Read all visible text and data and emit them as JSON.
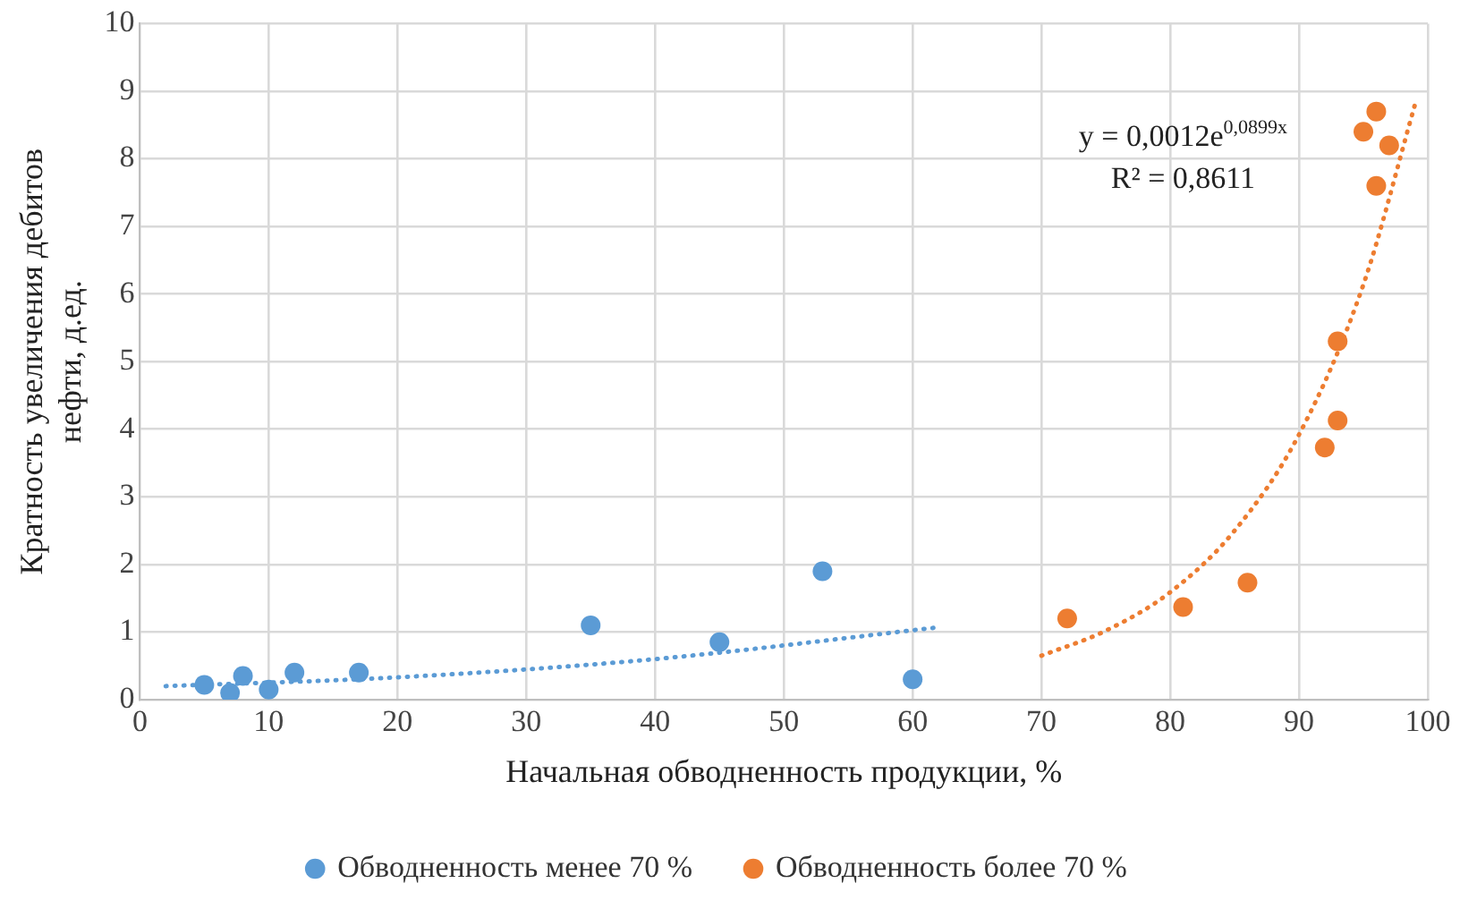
{
  "chart_data": {
    "type": "scatter",
    "xlabel": "Начальная обводненность продукции, %",
    "ylabel": "Кратность увеличения дебитов нефти, д.ед.",
    "xlim": [
      0,
      100
    ],
    "xticks": [
      0,
      10,
      20,
      30,
      40,
      50,
      60,
      70,
      80,
      90,
      100
    ],
    "ylim": [
      0,
      10
    ],
    "yticks": [
      0,
      1,
      2,
      3,
      4,
      5,
      6,
      7,
      8,
      9,
      10
    ],
    "grid": true,
    "legend": "bottom",
    "marker": "circle",
    "series": [
      {
        "name": "Обводненность менее 70 %",
        "color": "#5b9bd5",
        "x": [
          5,
          7,
          8,
          10,
          12,
          17,
          35,
          45,
          53,
          60
        ],
        "values": [
          0.22,
          0.1,
          0.35,
          0.15,
          0.4,
          0.4,
          1.1,
          0.85,
          1.9,
          0.3
        ]
      },
      {
        "name": "Обводненность более 70 %",
        "color": "#ed7d31",
        "x": [
          72,
          81,
          86,
          92,
          93,
          93,
          95,
          96,
          96,
          97
        ],
        "values": [
          1.2,
          1.37,
          1.73,
          3.73,
          4.13,
          5.3,
          8.4,
          8.7,
          7.6,
          8.2
        ]
      },
      {
        "type": "line",
        "color": "#5b9bd5",
        "line_style": "dotted",
        "marker": "none",
        "x": [
          2,
          20,
          40,
          62
        ],
        "values": [
          0.2,
          0.33,
          0.6,
          1.07
        ]
      },
      {
        "type": "line",
        "color": "#ed7d31",
        "line_style": "dotted",
        "marker": "none",
        "x": [
          70,
          75,
          80,
          85,
          90,
          95,
          99
        ],
        "values": [
          0.65,
          1.02,
          1.59,
          2.5,
          3.92,
          6.14,
          8.8
        ]
      }
    ],
    "annotations": [
      "y = 0,0012e$^{0,0899x}$",
      "R² = 0,8611"
    ]
  }
}
